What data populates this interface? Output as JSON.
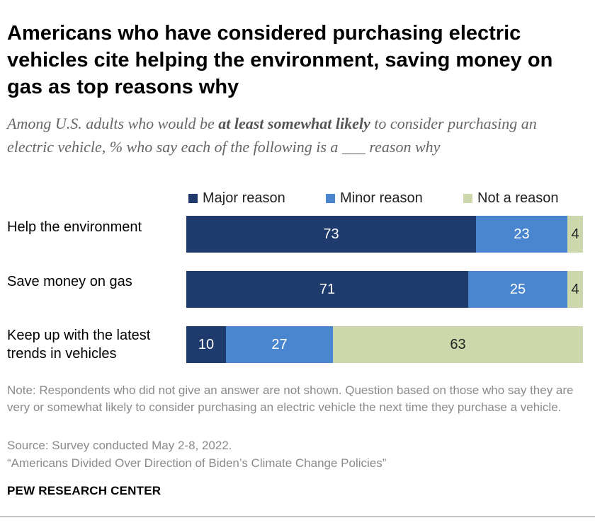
{
  "title": "Americans who have considered purchasing electric vehicles cite helping the environment, saving money on gas as top reasons why",
  "subtitle": {
    "pre": "Among U.S. adults who would be ",
    "bold": "at least somewhat likely",
    "post": " to consider purchasing an electric vehicle, % who say each of the following is a ___ reason why"
  },
  "colors": {
    "major": "#1f3b6e",
    "minor": "#4a86cf",
    "not": "#ccd7ac"
  },
  "chart_data": {
    "type": "bar",
    "orientation": "horizontal",
    "stacked": true,
    "categories": [
      "Help the environment",
      "Save money on gas",
      "Keep up with the latest trends in vehicles"
    ],
    "series": [
      {
        "name": "Major reason",
        "values": [
          73,
          71,
          10
        ]
      },
      {
        "name": "Minor reason",
        "values": [
          23,
          25,
          27
        ]
      },
      {
        "name": "Not a reason",
        "values": [
          4,
          4,
          63
        ]
      }
    ],
    "legend_position": "top-right",
    "grid": false
  },
  "footer": {
    "note": "Note: Respondents who did not give an answer are not shown. Question based on those who say they are very or somewhat likely to consider purchasing an electric vehicle the next time they purchase a vehicle.",
    "source": "Source: Survey conducted May 2-8, 2022.",
    "report": "“Americans Divided Over Direction of Biden’s Climate Change Policies”",
    "brand": "PEW RESEARCH CENTER"
  }
}
